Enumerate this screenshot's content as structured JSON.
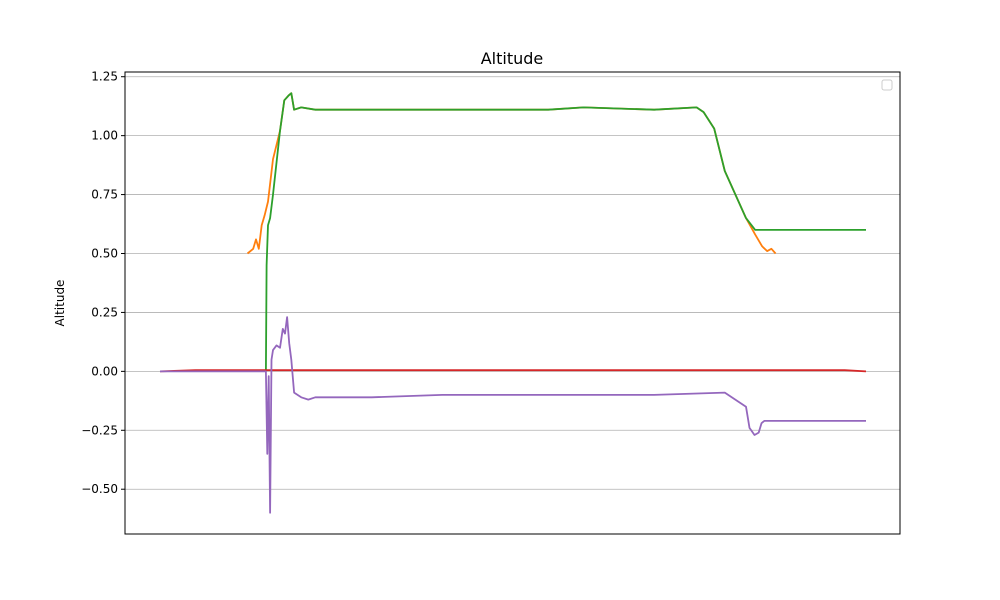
{
  "chart_data": {
    "type": "line",
    "title": "Altitude",
    "xlabel": "",
    "ylabel": "Altitude",
    "xlim": [
      0,
      1
    ],
    "ylim": [
      -0.69,
      1.27
    ],
    "yticks": [
      -0.5,
      -0.25,
      0.0,
      0.25,
      0.5,
      0.75,
      1.0,
      1.25
    ],
    "ytick_labels": [
      "−0.50",
      "−0.25",
      "0.00",
      "0.25",
      "0.50",
      "0.75",
      "1.00",
      "1.25"
    ],
    "grid": "y",
    "legend": "top-right (empty)",
    "series": [
      {
        "color": "#ff7f0e",
        "x": [
          0.124,
          0.132,
          0.136,
          0.14,
          0.144,
          0.148,
          0.153,
          0.16,
          0.17,
          0.176,
          0.182,
          0.186,
          0.19,
          0.2,
          0.22,
          0.3,
          0.4,
          0.5,
          0.55,
          0.6,
          0.7,
          0.76,
          0.77,
          0.785,
          0.8,
          0.83,
          0.843,
          0.853,
          0.86,
          0.866,
          0.872
        ],
        "y": [
          0.5,
          0.52,
          0.56,
          0.52,
          0.62,
          0.66,
          0.72,
          0.9,
          1.02,
          1.15,
          1.17,
          1.18,
          1.11,
          1.12,
          1.11,
          1.11,
          1.11,
          1.11,
          1.11,
          1.12,
          1.11,
          1.12,
          1.1,
          1.03,
          0.85,
          0.65,
          0.58,
          0.53,
          0.51,
          0.52,
          0.5
        ]
      },
      {
        "color": "#2ca02c",
        "x": [
          0.15,
          0.151,
          0.153,
          0.156,
          0.16,
          0.17,
          0.176,
          0.182,
          0.186,
          0.19,
          0.2,
          0.22,
          0.3,
          0.4,
          0.5,
          0.55,
          0.6,
          0.7,
          0.76,
          0.77,
          0.785,
          0.8,
          0.83,
          0.843,
          0.85,
          1.0
        ],
        "y": [
          0.0,
          0.45,
          0.62,
          0.65,
          0.75,
          1.02,
          1.15,
          1.17,
          1.18,
          1.11,
          1.12,
          1.11,
          1.11,
          1.11,
          1.11,
          1.11,
          1.12,
          1.11,
          1.12,
          1.1,
          1.03,
          0.85,
          0.65,
          0.6,
          0.6,
          0.6
        ]
      },
      {
        "color": "#d62728",
        "x": [
          0.0,
          0.05,
          0.2,
          0.5,
          0.8,
          0.97,
          1.0
        ],
        "y": [
          0.0,
          0.005,
          0.005,
          0.005,
          0.005,
          0.005,
          0.0
        ]
      },
      {
        "color": "#9467bd",
        "x": [
          0.0,
          0.15,
          0.152,
          0.154,
          0.156,
          0.158,
          0.16,
          0.165,
          0.17,
          0.174,
          0.177,
          0.18,
          0.183,
          0.186,
          0.19,
          0.2,
          0.21,
          0.22,
          0.3,
          0.4,
          0.5,
          0.6,
          0.7,
          0.8,
          0.83,
          0.835,
          0.842,
          0.848,
          0.852,
          0.856,
          0.86,
          1.0
        ],
        "y": [
          0.0,
          0.0,
          -0.35,
          -0.02,
          -0.6,
          0.05,
          0.09,
          0.11,
          0.1,
          0.18,
          0.16,
          0.23,
          0.12,
          0.05,
          -0.09,
          -0.11,
          -0.12,
          -0.11,
          -0.11,
          -0.1,
          -0.1,
          -0.1,
          -0.1,
          -0.09,
          -0.15,
          -0.24,
          -0.27,
          -0.26,
          -0.22,
          -0.21,
          -0.21,
          -0.21
        ]
      }
    ]
  }
}
